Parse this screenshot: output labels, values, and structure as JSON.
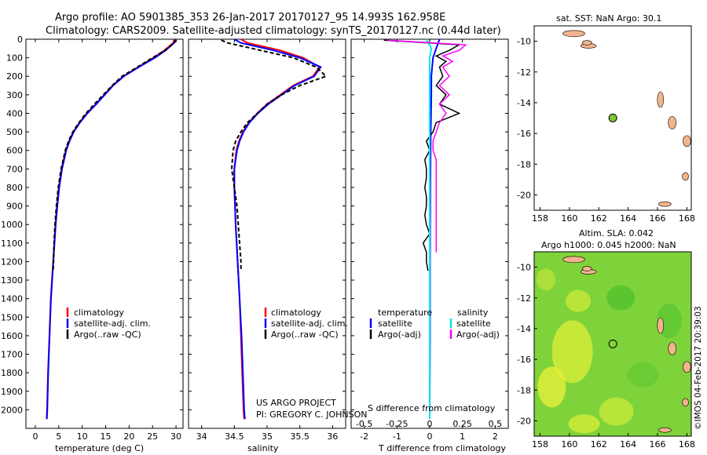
{
  "header": {
    "line1": "Argo profile: AO 5901385_353 26-Jan-2017 20170127_95 14.993S 162.958E",
    "line2": "Climatology: CARS2009. Satellite-adjusted climatology: synTS_20170127.nc (0.44d later)"
  },
  "credits": {
    "project": "US ARGO PROJECT",
    "pi": "PI: GREGORY C. JOHNSON",
    "imos": "©IMOS 04-Feb-2017 20:39:03"
  },
  "maps": {
    "sst_title": "sat. SST: NaN Argo: 30.1",
    "sla_title": "Altim. SLA: 0.042",
    "sla_subtitle": "Argo h1000: 0.045 h2000: NaN"
  },
  "colors": {
    "climatology": "#ff0000",
    "satellite": "#0000ff",
    "argo": "#000000",
    "salinity_satellite": "#00e5ee",
    "salinity_argo": "#ff00ff",
    "float_marker": "#7dc832",
    "island": "#f2b48c"
  },
  "chart_data": [
    {
      "type": "line",
      "id": "temperature",
      "xlabel": "temperature (deg C)",
      "ylabel": "",
      "xlim": [
        -2,
        31.5
      ],
      "ylim": [
        2100,
        0
      ],
      "xticks": [
        0,
        5,
        10,
        15,
        20,
        25,
        30
      ],
      "yticks": [
        0,
        100,
        200,
        300,
        400,
        500,
        600,
        700,
        800,
        900,
        1000,
        1100,
        1200,
        1300,
        1400,
        1500,
        1600,
        1700,
        1800,
        1900,
        2000
      ],
      "legend": [
        "climatology",
        "satellite-adj. clim.",
        "Argo(..raw -QC)"
      ],
      "series": [
        {
          "name": "climatology",
          "depth": [
            0,
            20,
            60,
            100,
            150,
            200,
            250,
            300,
            350,
            400,
            450,
            500,
            550,
            600,
            700,
            800,
            900,
            1000,
            1200,
            1400,
            1600,
            1800,
            2000,
            2050
          ],
          "values": [
            29.6,
            29.4,
            27.5,
            25.2,
            22.0,
            18.8,
            16.5,
            14.7,
            12.9,
            11.0,
            9.4,
            8.1,
            7.2,
            6.5,
            5.6,
            5.0,
            4.6,
            4.3,
            3.8,
            3.3,
            3.0,
            2.7,
            2.5,
            2.4
          ]
        },
        {
          "name": "satellite-adj. clim.",
          "depth": [
            0,
            20,
            60,
            100,
            150,
            200,
            250,
            300,
            350,
            400,
            450,
            500,
            550,
            600,
            700,
            800,
            900,
            1000,
            1200,
            1400,
            1600,
            1800,
            2000,
            2050
          ],
          "values": [
            29.9,
            29.6,
            27.8,
            25.5,
            22.1,
            18.9,
            16.6,
            14.8,
            13.0,
            11.1,
            9.5,
            8.2,
            7.3,
            6.6,
            5.7,
            5.1,
            4.7,
            4.35,
            3.85,
            3.35,
            3.05,
            2.75,
            2.55,
            2.45
          ]
        },
        {
          "name": "Argo(..raw -QC)",
          "depth": [
            5,
            20,
            60,
            100,
            150,
            200,
            250,
            300,
            350,
            400,
            450,
            500,
            550,
            600,
            700,
            800,
            900,
            1000,
            1100,
            1200,
            1250
          ],
          "values": [
            30.1,
            29.6,
            27.7,
            25.0,
            21.8,
            18.5,
            16.4,
            14.5,
            12.6,
            10.8,
            9.3,
            8.0,
            7.1,
            6.4,
            5.5,
            4.9,
            4.5,
            4.2,
            4.0,
            3.9,
            3.8
          ]
        }
      ]
    },
    {
      "type": "line",
      "id": "salinity",
      "xlabel": "salinity",
      "ylabel": "",
      "xlim": [
        33.8,
        36.2
      ],
      "ylim": [
        2100,
        0
      ],
      "xticks": [
        34,
        34.5,
        35,
        35.5,
        36
      ],
      "legend": [
        "climatology",
        "satellite-adj. clim.",
        "Argo(..raw -QC)"
      ],
      "series": [
        {
          "name": "climatology",
          "depth": [
            0,
            20,
            60,
            100,
            150,
            200,
            250,
            300,
            350,
            400,
            450,
            500,
            550,
            600,
            700,
            800,
            900,
            1000,
            1200,
            1400,
            1600,
            1800,
            2000,
            2050
          ],
          "values": [
            34.6,
            34.7,
            35.2,
            35.55,
            35.8,
            35.7,
            35.4,
            35.2,
            35.0,
            34.85,
            34.72,
            34.63,
            34.57,
            34.53,
            34.5,
            34.5,
            34.51,
            34.52,
            34.55,
            34.58,
            34.6,
            34.62,
            34.64,
            34.65
          ]
        },
        {
          "name": "satellite-adj. clim.",
          "depth": [
            0,
            20,
            60,
            100,
            150,
            200,
            250,
            300,
            350,
            400,
            450,
            500,
            550,
            600,
            700,
            800,
            900,
            1000,
            1200,
            1400,
            1600,
            1800,
            2000,
            2050
          ],
          "values": [
            34.5,
            34.6,
            35.1,
            35.5,
            35.82,
            35.72,
            35.42,
            35.22,
            35.02,
            34.86,
            34.73,
            34.64,
            34.58,
            34.54,
            34.5,
            34.5,
            34.51,
            34.52,
            34.55,
            34.58,
            34.61,
            34.63,
            34.65,
            34.66
          ]
        },
        {
          "name": "Argo(..raw -QC)",
          "depth": [
            5,
            20,
            60,
            100,
            150,
            200,
            250,
            300,
            350,
            400,
            450,
            500,
            550,
            600,
            700,
            800,
            900,
            1000,
            1100,
            1200,
            1250
          ],
          "values": [
            34.3,
            34.4,
            34.9,
            35.4,
            35.75,
            35.9,
            35.5,
            35.22,
            35.0,
            34.85,
            34.7,
            34.6,
            34.52,
            34.48,
            34.46,
            34.5,
            34.54,
            34.56,
            34.58,
            34.6,
            34.6
          ]
        }
      ]
    },
    {
      "type": "line",
      "id": "difference",
      "xlabel": "T difference from climatology",
      "xlabel_top": "S difference from climatology",
      "xlim": [
        -2.4,
        2.4
      ],
      "ylim": [
        2100,
        0
      ],
      "xticks": [
        -2,
        -1,
        0,
        1,
        2
      ],
      "xticks_s": [
        "-0.5",
        "-0.25",
        "0",
        "0.25",
        "0.5"
      ],
      "legend_temperature": {
        "heading": "temperature",
        "items": [
          "satellite",
          "Argo(-adj)"
        ]
      },
      "legend_salinity": {
        "heading": "salinity",
        "items": [
          "satellite",
          "Argo(-adj)"
        ]
      },
      "series": [
        {
          "name": "T satellite",
          "depth": [
            0,
            50,
            100,
            200,
            300,
            500,
            800,
            1200,
            1600,
            2050
          ],
          "values": [
            0.3,
            0.2,
            0.1,
            0.05,
            0.05,
            0.03,
            0.02,
            0.01,
            0.01,
            0.0
          ]
        },
        {
          "name": "T Argo",
          "depth": [
            5,
            30,
            60,
            90,
            120,
            150,
            200,
            250,
            300,
            350,
            400,
            450,
            500,
            550,
            600,
            650,
            700,
            750,
            800,
            850,
            900,
            950,
            1000,
            1050,
            1100,
            1150,
            1200,
            1250
          ],
          "values": [
            -1.4,
            0.9,
            0.6,
            0.2,
            0.5,
            0.3,
            0.4,
            0.2,
            0.5,
            0.3,
            0.9,
            0.2,
            0.1,
            -0.1,
            0.0,
            -0.15,
            -0.1,
            -0.1,
            -0.15,
            -0.1,
            -0.1,
            -0.15,
            -0.1,
            0.0,
            -0.2,
            -0.1,
            -0.1,
            -0.05
          ]
        },
        {
          "name": "S satellite",
          "depth": [
            0,
            50,
            100,
            200,
            400,
            800,
            1200,
            1600,
            2050
          ],
          "values": [
            -0.1,
            0.05,
            0.0,
            0.0,
            0.0,
            0.0,
            0.0,
            0.0,
            0.0
          ]
        },
        {
          "name": "S Argo",
          "depth": [
            5,
            30,
            60,
            90,
            120,
            150,
            200,
            250,
            300,
            350,
            400,
            450,
            500,
            550,
            600,
            650,
            700,
            800,
            900,
            1000,
            1100,
            1150
          ],
          "values": [
            -1.3,
            1.1,
            0.9,
            0.4,
            0.7,
            0.4,
            0.6,
            0.3,
            0.6,
            0.3,
            0.5,
            0.3,
            0.2,
            0.1,
            0.1,
            0.2,
            0.2,
            0.2,
            0.2,
            0.2,
            0.2,
            0.2
          ]
        }
      ]
    },
    {
      "type": "scatter",
      "id": "sst_map",
      "title": "sat. SST: NaN Argo: 30.1",
      "xlim": [
        157.6,
        168.3
      ],
      "ylim": [
        -21,
        -9
      ],
      "xticks": [
        158,
        160,
        162,
        164,
        166,
        168
      ],
      "yticks": [
        -10,
        -12,
        -14,
        -16,
        -18,
        -20
      ],
      "points": [
        {
          "x": 162.958,
          "y": -14.993
        }
      ]
    },
    {
      "type": "heatmap",
      "id": "sla_map",
      "title": "Altim. SLA: 0.042",
      "subtitle": "Argo h1000: 0.045 h2000: NaN",
      "xlim": [
        157.6,
        168.3
      ],
      "ylim": [
        -21,
        -9
      ],
      "xticks": [
        158,
        160,
        162,
        164,
        166,
        168
      ],
      "yticks": [
        -10,
        -12,
        -14,
        -16,
        -18,
        -20
      ],
      "points": [
        {
          "x": 162.958,
          "y": -14.993
        }
      ]
    }
  ]
}
